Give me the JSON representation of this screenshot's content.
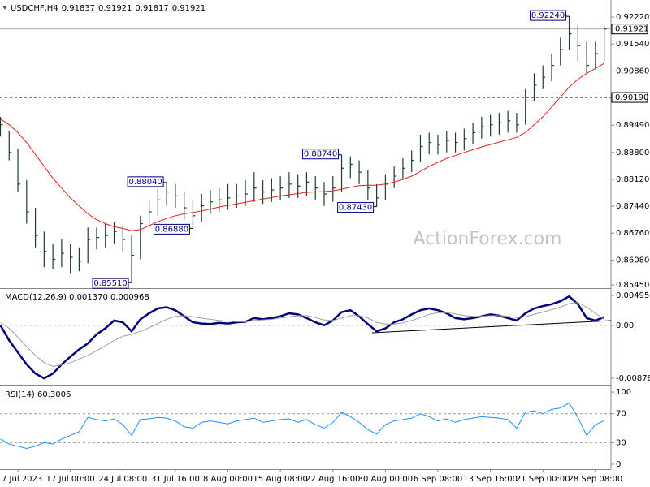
{
  "chart_data": [
    {
      "type": "ohlc",
      "symbol": "USDCHF,H4",
      "ohlc": [
        0.91837,
        0.91921,
        0.91817,
        0.91921
      ],
      "watermark": "ActionForex.com",
      "ylim": [
        0.8537,
        0.9255
      ],
      "yticks": [
        {
          "value": 0.9222,
          "label": "0.92220"
        },
        {
          "value": 0.9154,
          "label": "0.91540"
        },
        {
          "value": 0.9086,
          "label": "0.90860"
        },
        {
          "value": 0.8949,
          "label": "0.89490"
        },
        {
          "value": 0.888,
          "label": "0.88800"
        },
        {
          "value": 0.8812,
          "label": "0.88120"
        },
        {
          "value": 0.8744,
          "label": "0.87440"
        },
        {
          "value": 0.8676,
          "label": "0.86760"
        },
        {
          "value": 0.8608,
          "label": "0.86080"
        },
        {
          "value": 0.8545,
          "label": "0.85450"
        }
      ],
      "color": "#1f3d2b",
      "high": [
        0.897,
        0.8935,
        0.889,
        0.881,
        0.874,
        0.868,
        0.865,
        0.866,
        0.865,
        0.864,
        0.869,
        0.869,
        0.87,
        0.8705,
        0.8695,
        0.867,
        0.872,
        0.876,
        0.879,
        0.8804,
        0.88,
        0.878,
        0.876,
        0.8775,
        0.8785,
        0.879,
        0.88,
        0.88,
        0.881,
        0.883,
        0.881,
        0.8815,
        0.882,
        0.883,
        0.8825,
        0.883,
        0.882,
        0.8805,
        0.882,
        0.8874,
        0.887,
        0.886,
        0.8835,
        0.88,
        0.8825,
        0.8845,
        0.8865,
        0.8885,
        0.8925,
        0.893,
        0.8925,
        0.8935,
        0.893,
        0.894,
        0.8955,
        0.897,
        0.8975,
        0.898,
        0.8985,
        0.898,
        0.904,
        0.908,
        0.91,
        0.913,
        0.917,
        0.9224,
        0.92,
        0.916,
        0.916,
        0.92
      ],
      "low": [
        0.892,
        0.886,
        0.878,
        0.87,
        0.864,
        0.859,
        0.8585,
        0.859,
        0.8575,
        0.858,
        0.86,
        0.8635,
        0.864,
        0.865,
        0.863,
        0.8551,
        0.861,
        0.869,
        0.872,
        0.8745,
        0.874,
        0.871,
        0.8688,
        0.8705,
        0.8725,
        0.873,
        0.8735,
        0.874,
        0.8745,
        0.8755,
        0.875,
        0.8755,
        0.876,
        0.8765,
        0.8765,
        0.877,
        0.876,
        0.8745,
        0.8755,
        0.878,
        0.8815,
        0.88,
        0.876,
        0.8743,
        0.876,
        0.879,
        0.881,
        0.883,
        0.8855,
        0.8875,
        0.8875,
        0.888,
        0.888,
        0.8885,
        0.89,
        0.8915,
        0.892,
        0.8925,
        0.893,
        0.893,
        0.895,
        0.901,
        0.904,
        0.906,
        0.91,
        0.914,
        0.911,
        0.908,
        0.909,
        0.911
      ],
      "close": [
        0.895,
        0.888,
        0.88,
        0.873,
        0.867,
        0.863,
        0.861,
        0.8625,
        0.8615,
        0.8605,
        0.866,
        0.8665,
        0.867,
        0.868,
        0.866,
        0.862,
        0.87,
        0.873,
        0.876,
        0.878,
        0.877,
        0.874,
        0.872,
        0.8745,
        0.8755,
        0.876,
        0.8765,
        0.877,
        0.8775,
        0.879,
        0.878,
        0.8785,
        0.879,
        0.88,
        0.8795,
        0.8805,
        0.879,
        0.8775,
        0.879,
        0.884,
        0.885,
        0.883,
        0.879,
        0.8765,
        0.88,
        0.882,
        0.884,
        0.886,
        0.8895,
        0.8905,
        0.89,
        0.891,
        0.8905,
        0.8915,
        0.893,
        0.8945,
        0.895,
        0.8955,
        0.896,
        0.895,
        0.901,
        0.905,
        0.907,
        0.91,
        0.914,
        0.918,
        0.915,
        0.91,
        0.913,
        0.91921
      ],
      "ma": {
        "color": "#e02020",
        "values": [
          0.8965,
          0.895,
          0.893,
          0.8905,
          0.8875,
          0.8845,
          0.8815,
          0.879,
          0.8765,
          0.8745,
          0.8725,
          0.871,
          0.87,
          0.8692,
          0.8688,
          0.8682,
          0.8685,
          0.8695,
          0.8705,
          0.8713,
          0.872,
          0.8725,
          0.8728,
          0.8732,
          0.8737,
          0.8742,
          0.8746,
          0.875,
          0.8754,
          0.8758,
          0.8762,
          0.8766,
          0.877,
          0.8773,
          0.8776,
          0.8779,
          0.878,
          0.8781,
          0.8783,
          0.8787,
          0.8792,
          0.8796,
          0.8797,
          0.8797,
          0.88,
          0.8805,
          0.8812,
          0.882,
          0.8832,
          0.8845,
          0.8855,
          0.8865,
          0.8872,
          0.888,
          0.8887,
          0.8894,
          0.89,
          0.8906,
          0.8912,
          0.8918,
          0.893,
          0.895,
          0.897,
          0.8995,
          0.902,
          0.9045,
          0.9065,
          0.908,
          0.9092,
          0.9105
        ]
      },
      "price_lines": [
        {
          "value": 0.91921,
          "style": "solid"
        },
        {
          "value": 0.9019,
          "label": "0.90190",
          "style": "dashed"
        }
      ],
      "annotations": [
        {
          "value": 0.9224,
          "label": "0.92240"
        },
        {
          "value": 0.8874,
          "label": "0.88740"
        },
        {
          "value": 0.8804,
          "label": "0.88040"
        },
        {
          "value": 0.8688,
          "label": "0.86880"
        },
        {
          "value": 0.8743,
          "label": "0.87430"
        },
        {
          "value": 0.8551,
          "label": "0.85510"
        }
      ]
    },
    {
      "type": "line",
      "title": "MACD(12,26,9) 0.001370 0.000968",
      "ylim": [
        -0.009728,
        0.006037
      ],
      "yticks": [
        0.004959,
        {
          "value": 0,
          "label": "0.00"
        },
        -0.008785
      ],
      "levels": [
        0
      ],
      "series": [
        {
          "color": "#00007a",
          "width": 2.5,
          "values": [
            0.0,
            -0.0025,
            -0.0045,
            -0.0065,
            -0.008,
            -0.0088,
            -0.008,
            -0.0065,
            -0.0052,
            -0.004,
            -0.003,
            -0.0015,
            -0.0005,
            0.0008,
            0.0005,
            -0.001,
            0.001,
            0.002,
            0.0028,
            0.003,
            0.0025,
            0.0015,
            0.0005,
            0.0003,
            0.0002,
            0.0004,
            0.0003,
            0.0005,
            0.0006,
            0.0012,
            0.001,
            0.0012,
            0.0015,
            0.002,
            0.0018,
            0.0012,
            0.0005,
            0.0,
            0.0008,
            0.0022,
            0.0025,
            0.0015,
            0.0002,
            -0.001,
            -0.0005,
            0.0005,
            0.001,
            0.0018,
            0.0025,
            0.0028,
            0.0025,
            0.002,
            0.0012,
            0.001,
            0.0012,
            0.0015,
            0.0018,
            0.0016,
            0.0012,
            0.0008,
            0.002,
            0.0028,
            0.0032,
            0.0035,
            0.004,
            0.0048,
            0.0035,
            0.0012,
            0.0008,
            0.00137
          ]
        },
        {
          "color": "#a0a0a0",
          "width": 1,
          "values": [
            0.0005,
            -0.0005,
            -0.002,
            -0.0035,
            -0.005,
            -0.0062,
            -0.0068,
            -0.0066,
            -0.0062,
            -0.0056,
            -0.005,
            -0.0042,
            -0.0034,
            -0.0025,
            -0.0018,
            -0.0015,
            -0.001,
            -0.0004,
            0.0003,
            0.001,
            0.0015,
            0.0016,
            0.0014,
            0.0012,
            0.001,
            0.0008,
            0.0007,
            0.0006,
            0.0006,
            0.0008,
            0.0009,
            0.001,
            0.0012,
            0.0014,
            0.0016,
            0.0016,
            0.0013,
            0.0009,
            0.0008,
            0.0012,
            0.0016,
            0.0016,
            0.0012,
            0.0005,
            0.0002,
            0.0002,
            0.0004,
            0.0008,
            0.0013,
            0.0018,
            0.0021,
            0.0021,
            0.0019,
            0.0016,
            0.0015,
            0.0015,
            0.0016,
            0.0016,
            0.0015,
            0.0013,
            0.0014,
            0.0018,
            0.0022,
            0.0026,
            0.003,
            0.0036,
            0.0038,
            0.003,
            0.002,
            0.000968
          ]
        }
      ]
    },
    {
      "type": "line",
      "title": "RSI(14) 60.3006",
      "ylim": [
        -6.7,
        107.9
      ],
      "yticks": [
        100,
        70,
        30,
        0
      ],
      "levels": [
        70,
        30
      ],
      "series": [
        {
          "color": "#1e90ff",
          "width": 1,
          "values": [
            35,
            28,
            25,
            22,
            25,
            30,
            28,
            35,
            40,
            45,
            65,
            62,
            60,
            63,
            55,
            40,
            62,
            63,
            65,
            64,
            60,
            52,
            50,
            58,
            60,
            58,
            56,
            60,
            62,
            64,
            58,
            60,
            62,
            63,
            58,
            62,
            55,
            50,
            58,
            72,
            66,
            58,
            48,
            42,
            55,
            60,
            62,
            64,
            70,
            66,
            60,
            63,
            58,
            62,
            64,
            66,
            65,
            64,
            62,
            50,
            72,
            74,
            70,
            76,
            78,
            85,
            65,
            40,
            55,
            60.3006
          ]
        }
      ],
      "categories": [
        null,
        null,
        "7 Jul 2023",
        null,
        null,
        null,
        null,
        null,
        "17 Jul 00:00",
        null,
        null,
        null,
        null,
        null,
        "24 Jul 08:00",
        null,
        null,
        null,
        null,
        null,
        "31 Jul 16:00",
        null,
        null,
        null,
        null,
        null,
        "8 Aug 00:00",
        null,
        null,
        null,
        null,
        null,
        "15 Aug 08:00",
        null,
        null,
        null,
        null,
        null,
        "22 Aug 16:00",
        null,
        null,
        null,
        null,
        null,
        "30 Aug 00:00",
        null,
        null,
        null,
        null,
        null,
        "6 Sep 08:00",
        null,
        null,
        null,
        null,
        null,
        "13 Sep 16:00",
        null,
        null,
        null,
        null,
        null,
        "21 Sep 00:00",
        null,
        null,
        null,
        null,
        null,
        "28 Sep 08:00",
        null
      ]
    }
  ]
}
